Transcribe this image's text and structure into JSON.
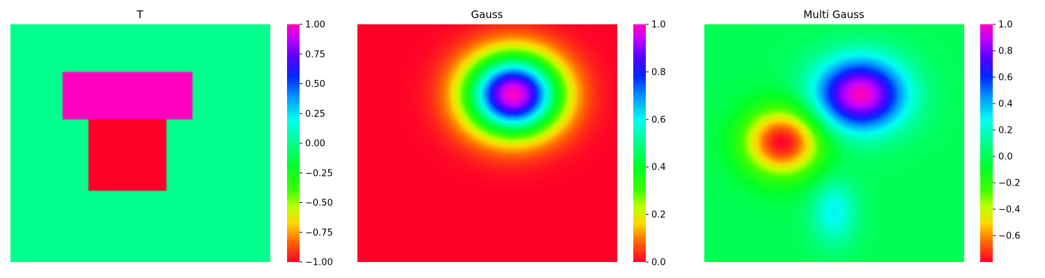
{
  "chart_data": [
    {
      "type": "heatmap",
      "title": "T",
      "colormap": "gist_rainbow_r",
      "clim": [
        -1.0,
        1.0
      ],
      "colorbar_ticks": [
        "1.00",
        "0.75",
        "0.50",
        "0.25",
        "0.00",
        "−0.25",
        "−0.50",
        "−0.75",
        "−1.00"
      ],
      "background_value": 0.0,
      "regions": [
        {
          "label": "T top bar",
          "value": 1.0
        },
        {
          "label": "T stem",
          "value": -1.0
        }
      ],
      "axes": "off"
    },
    {
      "type": "heatmap",
      "title": "Gauss",
      "colormap": "gist_rainbow_r",
      "clim": [
        0.0,
        1.0
      ],
      "colorbar_ticks": [
        "1.0",
        "0.8",
        "0.6",
        "0.4",
        "0.2",
        "0.0"
      ],
      "background_value": 0.0,
      "blobs": [
        {
          "peak": 1.0
        }
      ],
      "axes": "off"
    },
    {
      "type": "heatmap",
      "title": "Multi Gauss",
      "colormap": "gist_rainbow_r",
      "clim": [
        -0.8,
        1.0
      ],
      "colorbar_ticks": [
        "1.0",
        "0.8",
        "0.6",
        "0.4",
        "0.2",
        "0.0",
        "−0.2",
        "−0.4",
        "−0.6"
      ],
      "background_value": 0.0,
      "blobs": [
        {
          "peak": 1.0
        },
        {
          "peak": -0.8
        },
        {
          "peak": 0.3
        }
      ],
      "axes": "off"
    }
  ]
}
